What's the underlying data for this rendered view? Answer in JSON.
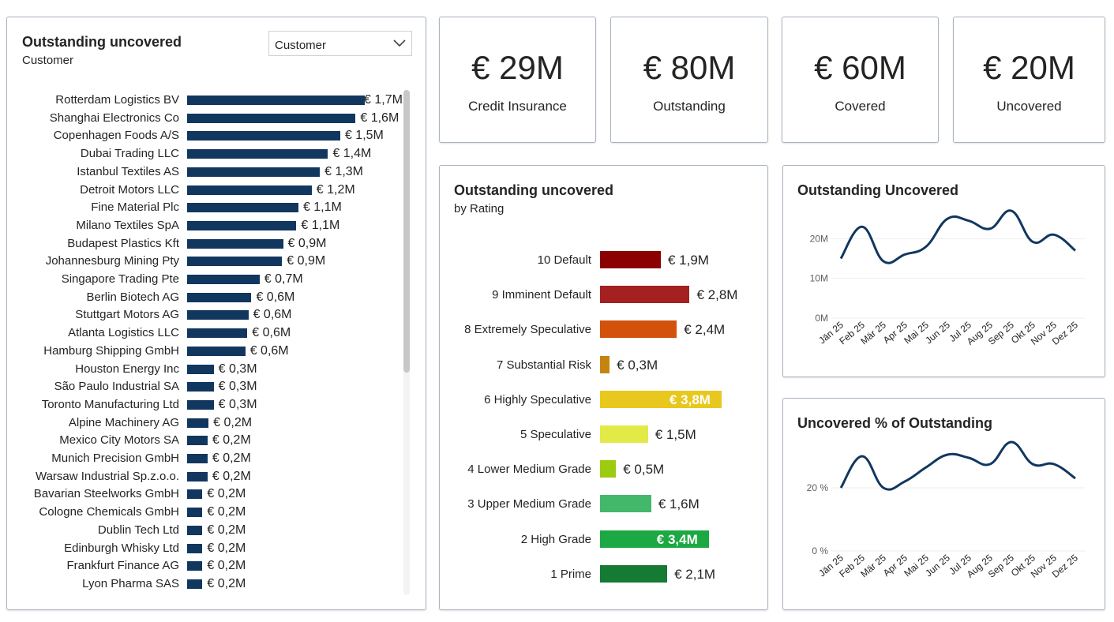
{
  "kpis": [
    {
      "value": "€ 29M",
      "label": "Credit Insurance"
    },
    {
      "value": "€ 80M",
      "label": "Outstanding"
    },
    {
      "value": "€ 60M",
      "label": "Covered"
    },
    {
      "value": "€ 20M",
      "label": "Uncovered"
    }
  ],
  "customer_panel": {
    "title": "Outstanding uncovered",
    "subtitle": "Customer",
    "dropdown_value": "Customer"
  },
  "rating_panel": {
    "title": "Outstanding uncovered",
    "subtitle": "by Rating"
  },
  "line1_panel": {
    "title": "Outstanding Uncovered"
  },
  "line2_panel": {
    "title": "Uncovered % of Outstanding"
  },
  "colors": {
    "bar": "#12375f",
    "line": "#12375f",
    "rating": [
      "#8b0000",
      "#a52020",
      "#d2520c",
      "#c58410",
      "#e8c81e",
      "#e2ea48",
      "#9ccc10",
      "#44b86a",
      "#1ca842",
      "#147a34"
    ]
  },
  "chart_data": [
    {
      "type": "bar",
      "orientation": "horizontal",
      "title": "Outstanding uncovered",
      "subtitle": "Customer",
      "categories": [
        "Rotterdam Logistics BV",
        "Shanghai Electronics Co",
        "Copenhagen Foods A/S",
        "Dubai Trading LLC",
        "Istanbul Textiles AS",
        "Detroit Motors LLC",
        "Fine Material Plc",
        "Milano Textiles SpA",
        "Budapest Plastics Kft",
        "Johannesburg Mining Pty",
        "Singapore Trading Pte",
        "Berlin Biotech AG",
        "Stuttgart Motors AG",
        "Atlanta Logistics LLC",
        "Hamburg Shipping GmbH",
        "Houston Energy Inc",
        "São Paulo Industrial SA",
        "Toronto Manufacturing Ltd",
        "Alpine Machinery AG",
        "Mexico City Motors SA",
        "Munich Precision GmbH",
        "Warsaw Industrial Sp.z.o.o.",
        "Bavarian Steelworks GmbH",
        "Cologne Chemicals GmbH",
        "Dublin Tech Ltd",
        "Edinburgh Whisky Ltd",
        "Frankfurt Finance AG",
        "Lyon Pharma SAS"
      ],
      "values": [
        1.74,
        1.65,
        1.5,
        1.38,
        1.3,
        1.22,
        1.09,
        1.07,
        0.94,
        0.93,
        0.71,
        0.63,
        0.6,
        0.59,
        0.57,
        0.26,
        0.26,
        0.26,
        0.21,
        0.2,
        0.2,
        0.2,
        0.15,
        0.15,
        0.15,
        0.15,
        0.15,
        0.15
      ],
      "labels": [
        "€ 1,7M",
        "€ 1,6M",
        "€ 1,5M",
        "€ 1,4M",
        "€ 1,3M",
        "€ 1,2M",
        "€ 1,1M",
        "€ 1,1M",
        "€ 0,9M",
        "€ 0,9M",
        "€ 0,7M",
        "€ 0,6M",
        "€ 0,6M",
        "€ 0,6M",
        "€ 0,6M",
        "€ 0,3M",
        "€ 0,3M",
        "€ 0,3M",
        "€ 0,2M",
        "€ 0,2M",
        "€ 0,2M",
        "€ 0,2M",
        "€ 0,2M",
        "€ 0,2M",
        "€ 0,2M",
        "€ 0,2M",
        "€ 0,2M",
        "€ 0,2M"
      ],
      "unit": "€ M"
    },
    {
      "type": "bar",
      "orientation": "horizontal",
      "title": "Outstanding uncovered",
      "subtitle": "by Rating",
      "categories": [
        "10 Default",
        "9 Imminent Default",
        "8 Extremely Speculative",
        "7 Substantial Risk",
        "6 Highly Speculative",
        "5 Speculative",
        "4 Lower Medium Grade",
        "3 Upper Medium Grade",
        "2 High Grade",
        "1 Prime"
      ],
      "values": [
        1.9,
        2.8,
        2.4,
        0.3,
        3.8,
        1.5,
        0.5,
        1.6,
        3.4,
        2.1
      ],
      "labels": [
        "€ 1,9M",
        "€ 2,8M",
        "€ 2,4M",
        "€ 0,3M",
        "€ 3,8M",
        "€ 1,5M",
        "€ 0,5M",
        "€ 1,6M",
        "€ 3,4M",
        "€ 2,1M"
      ],
      "unit": "€ M"
    },
    {
      "type": "line",
      "title": "Outstanding Uncovered",
      "x": [
        "Jän 25",
        "Feb 25",
        "Mär 25",
        "Apr 25",
        "Mai 25",
        "Jun 25",
        "Jul 25",
        "Aug 25",
        "Sep 25",
        "Okt 25",
        "Nov 25",
        "Dez 25"
      ],
      "values": [
        15,
        23,
        14.3,
        16,
        18,
        25,
        24.5,
        22.5,
        27,
        19.2,
        21,
        17
      ],
      "yticks": [
        0,
        10,
        20
      ],
      "ytick_labels": [
        "0M",
        "10M",
        "20M"
      ],
      "ylim": [
        0,
        30
      ],
      "grid": true
    },
    {
      "type": "line",
      "title": "Uncovered % of Outstanding",
      "x": [
        "Jän 25",
        "Feb 25",
        "Mär 25",
        "Apr 25",
        "Mai 25",
        "Jun 25",
        "Jul 25",
        "Aug 25",
        "Sep 25",
        "Okt 25",
        "Nov 25",
        "Dez 25"
      ],
      "values": [
        20.0,
        30.0,
        20.0,
        22.0,
        26.5,
        30.5,
        29.5,
        27.5,
        34.5,
        27.5,
        27.5,
        23.0
      ],
      "yticks": [
        0,
        20
      ],
      "ytick_labels": [
        "0 %",
        "20 %"
      ],
      "ylim": [
        0,
        40
      ],
      "grid": true
    }
  ]
}
